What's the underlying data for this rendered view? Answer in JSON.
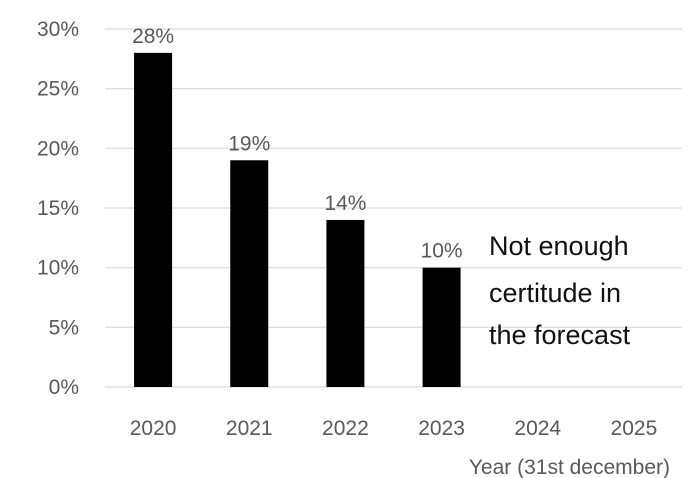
{
  "chart_data": {
    "type": "bar",
    "categories": [
      "2020",
      "2021",
      "2022",
      "2023",
      "2024",
      "2025"
    ],
    "values": [
      28,
      19,
      14,
      10,
      null,
      null
    ],
    "data_labels": [
      "28%",
      "19%",
      "14%",
      "10%",
      "",
      ""
    ],
    "xlabel": "Year (31st december)",
    "ylabel": "",
    "ylim": [
      0,
      30
    ],
    "y_ticks": [
      0,
      5,
      10,
      15,
      20,
      25,
      30
    ],
    "y_tick_labels": [
      "0%",
      "5%",
      "10%",
      "15%",
      "20%",
      "25%",
      "30%"
    ],
    "grid": true,
    "legend": "none",
    "annotation": [
      "Not enough",
      "certitude in",
      "the forecast"
    ],
    "colors": {
      "bar": "#000000",
      "grid": "#d9d9d9",
      "text": "#595959",
      "annotation": "#111111"
    }
  }
}
